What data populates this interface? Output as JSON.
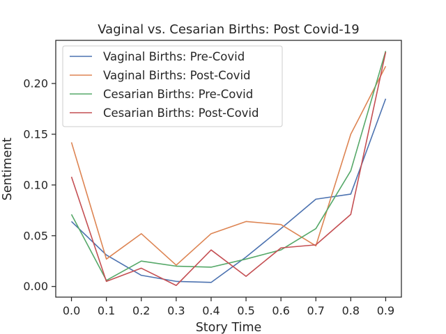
{
  "chart_data": {
    "type": "line",
    "title": "Vaginal vs. Cesarian Births: Post Covid-19",
    "xlabel": "Story Time",
    "ylabel": "Sentiment",
    "x": [
      0.0,
      0.1,
      0.2,
      0.3,
      0.4,
      0.5,
      0.6,
      0.7,
      0.8,
      0.9
    ],
    "x_tick_labels": [
      "0.0",
      "0.1",
      "0.2",
      "0.3",
      "0.4",
      "0.5",
      "0.6",
      "0.7",
      "0.8",
      "0.9"
    ],
    "y_ticks": [
      0.0,
      0.05,
      0.1,
      0.15,
      0.2
    ],
    "y_tick_labels": [
      "0.00",
      "0.05",
      "0.10",
      "0.15",
      "0.20"
    ],
    "xlim": [
      -0.045,
      0.945
    ],
    "ylim": [
      -0.0105,
      0.2425
    ],
    "grid": false,
    "legend_position": "top-left",
    "series": [
      {
        "name": "Vaginal Births: Pre-Covid",
        "color": "#4c72b0",
        "values": [
          0.064,
          0.031,
          0.011,
          0.005,
          0.004,
          0.029,
          0.057,
          0.086,
          0.091,
          0.185
        ]
      },
      {
        "name": "Vaginal Births: Post-Covid",
        "color": "#dd8452",
        "values": [
          0.142,
          0.027,
          0.052,
          0.021,
          0.052,
          0.064,
          0.061,
          0.04,
          0.15,
          0.217
        ]
      },
      {
        "name": "Cesarian Births: Pre-Covid",
        "color": "#55a868",
        "values": [
          0.071,
          0.006,
          0.025,
          0.02,
          0.019,
          0.027,
          0.036,
          0.057,
          0.114,
          0.232
        ]
      },
      {
        "name": "Cesarian Births: Post-Covid",
        "color": "#c44e52",
        "values": [
          0.108,
          0.005,
          0.018,
          0.001,
          0.036,
          0.01,
          0.038,
          0.041,
          0.071,
          0.231
        ]
      }
    ]
  }
}
